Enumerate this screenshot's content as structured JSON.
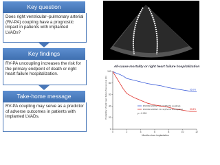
{
  "sections": [
    {
      "heading": "Key question",
      "text": "Does right ventricular–pulmonary arterial (RV-PA) coupling have a prognostic impact in patients with implanted LVADs?"
    },
    {
      "heading": "Key findings",
      "text": "RV-PA uncoupling increases the risk for the primary endpoint of death or right heart failure hospitalization."
    },
    {
      "heading": "Take-home message",
      "text": "RV-PA coupling may serve as a predictor of adverse outcomes in patients with implanted LVADs."
    }
  ],
  "chart_data": {
    "type": "line",
    "title": "All-cause mortality or right heart failure hospitalization",
    "x_label": "Months since implantation",
    "y_label": "Probability of right heart failure-free survival (%)",
    "annotation": "p < 0.001",
    "xlim": [
      0,
      12
    ],
    "xticks": [
      0,
      2,
      4,
      6,
      8,
      10,
      12
    ],
    "ylim": [
      0,
      100
    ],
    "yticks": [
      0,
      20,
      40,
      60,
      80,
      100
    ],
    "series": [
      {
        "name": "RVFWLS/PASP ≥0.19 (RV-PA coupling)",
        "color": "#3a5bd9",
        "x": [
          0,
          0.5,
          1,
          1.5,
          2,
          3,
          4,
          5,
          6,
          7,
          8,
          9,
          10,
          11,
          12
        ],
        "values": [
          100,
          97,
          95,
          92,
          88,
          85,
          82,
          79,
          77,
          75,
          72,
          70,
          68,
          66,
          65
        ],
        "value_labels": [
          null,
          null,
          null,
          null,
          null,
          null,
          null,
          null,
          null,
          null,
          null,
          null,
          null,
          null,
          "65.0%"
        ]
      },
      {
        "name": "RVFWLS/PASP <0.19 (RV-PA uncoupling)",
        "color": "#e0302a",
        "x": [
          0,
          0.5,
          1,
          1.5,
          2,
          3,
          4,
          5,
          6,
          7,
          8,
          9,
          10,
          11,
          12
        ],
        "values": [
          100,
          90,
          80,
          70,
          62,
          55,
          50,
          45,
          42,
          40,
          38,
          35,
          33,
          31,
          30.8
        ],
        "value_labels": [
          null,
          null,
          null,
          null,
          null,
          null,
          null,
          null,
          null,
          null,
          null,
          null,
          null,
          null,
          "30.8%"
        ]
      }
    ]
  }
}
